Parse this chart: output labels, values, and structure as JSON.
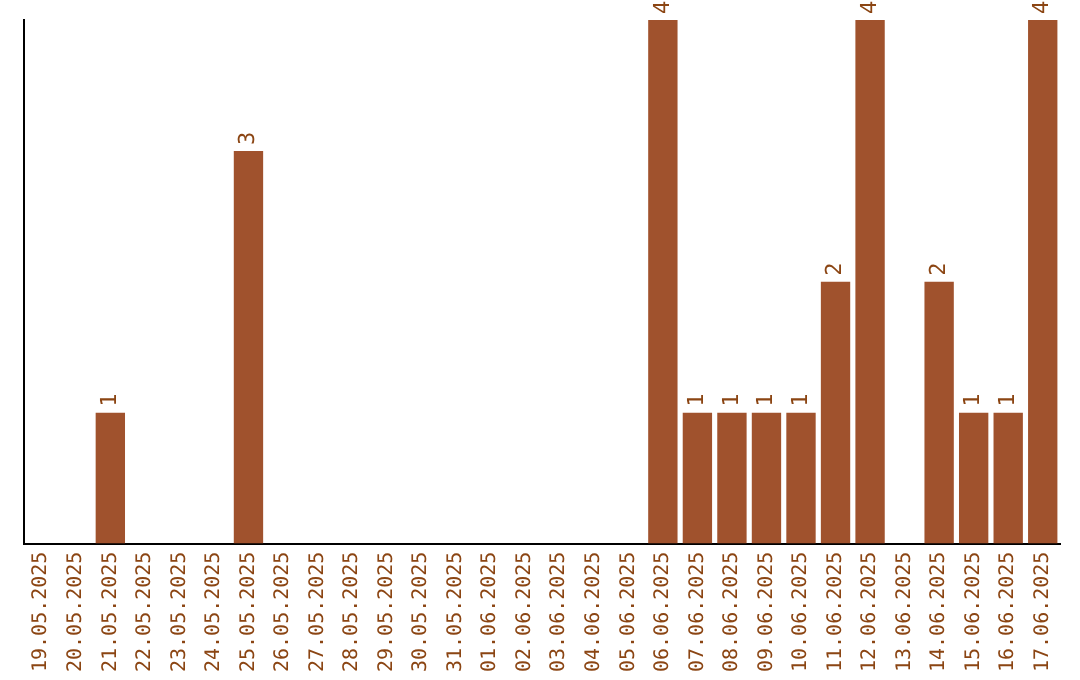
{
  "chart_data": {
    "type": "bar",
    "categories": [
      "19.05.2025",
      "20.05.2025",
      "21.05.2025",
      "22.05.2025",
      "23.05.2025",
      "24.05.2025",
      "25.05.2025",
      "26.05.2025",
      "27.05.2025",
      "28.05.2025",
      "29.05.2025",
      "30.05.2025",
      "31.05.2025",
      "01.06.2025",
      "02.06.2025",
      "03.06.2025",
      "04.06.2025",
      "05.06.2025",
      "06.06.2025",
      "07.06.2025",
      "08.06.2025",
      "09.06.2025",
      "10.06.2025",
      "11.06.2025",
      "12.06.2025",
      "13.06.2025",
      "14.06.2025",
      "15.06.2025",
      "16.06.2025",
      "17.06.2025"
    ],
    "values": [
      null,
      null,
      1,
      null,
      null,
      null,
      3,
      null,
      null,
      null,
      null,
      null,
      null,
      null,
      null,
      null,
      null,
      null,
      4,
      1,
      1,
      1,
      1,
      2,
      4,
      null,
      2,
      1,
      1,
      4
    ],
    "color": "#a0522d",
    "ylim": [
      0,
      4
    ],
    "tick_labels": "x",
    "grid": false,
    "legend": false,
    "data_labels": true
  }
}
